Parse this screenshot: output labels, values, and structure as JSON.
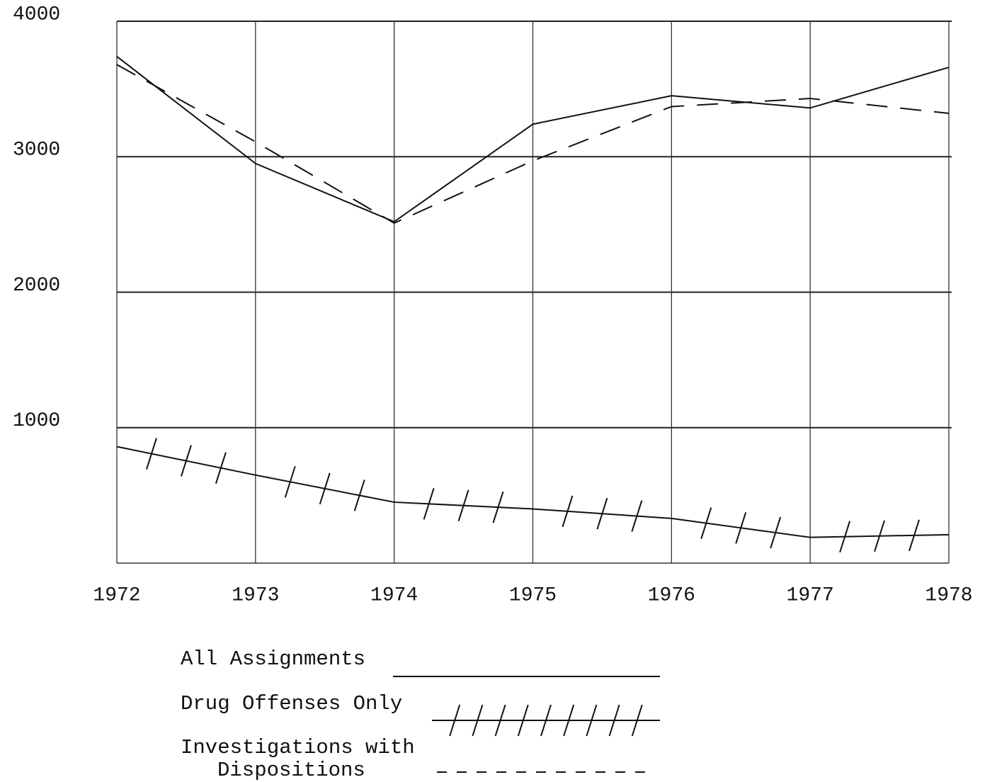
{
  "chart_data": {
    "type": "line",
    "x": [
      1972,
      1973,
      1974,
      1975,
      1976,
      1977,
      1978
    ],
    "xlim": [
      1972,
      1978
    ],
    "xticks": [
      1972,
      1973,
      1974,
      1975,
      1976,
      1977,
      1978
    ],
    "ylim": [
      0,
      4000
    ],
    "yticks": [
      1000,
      2000,
      3000,
      4000
    ],
    "grid": true,
    "series": [
      {
        "name": "All Assignments",
        "color": "#111111",
        "style": "solid",
        "values": [
          3740,
          2950,
          2520,
          3240,
          3450,
          3360,
          3660
        ]
      },
      {
        "name": "Drug Offenses Only",
        "color": "#111111",
        "style": "hatched",
        "values": [
          860,
          650,
          450,
          400,
          330,
          190,
          210
        ]
      },
      {
        "name": "Investigations with Dispositions",
        "color": "#111111",
        "style": "dashed",
        "values": [
          3680,
          3110,
          2510,
          2970,
          3370,
          3430,
          3320
        ]
      }
    ]
  }
}
